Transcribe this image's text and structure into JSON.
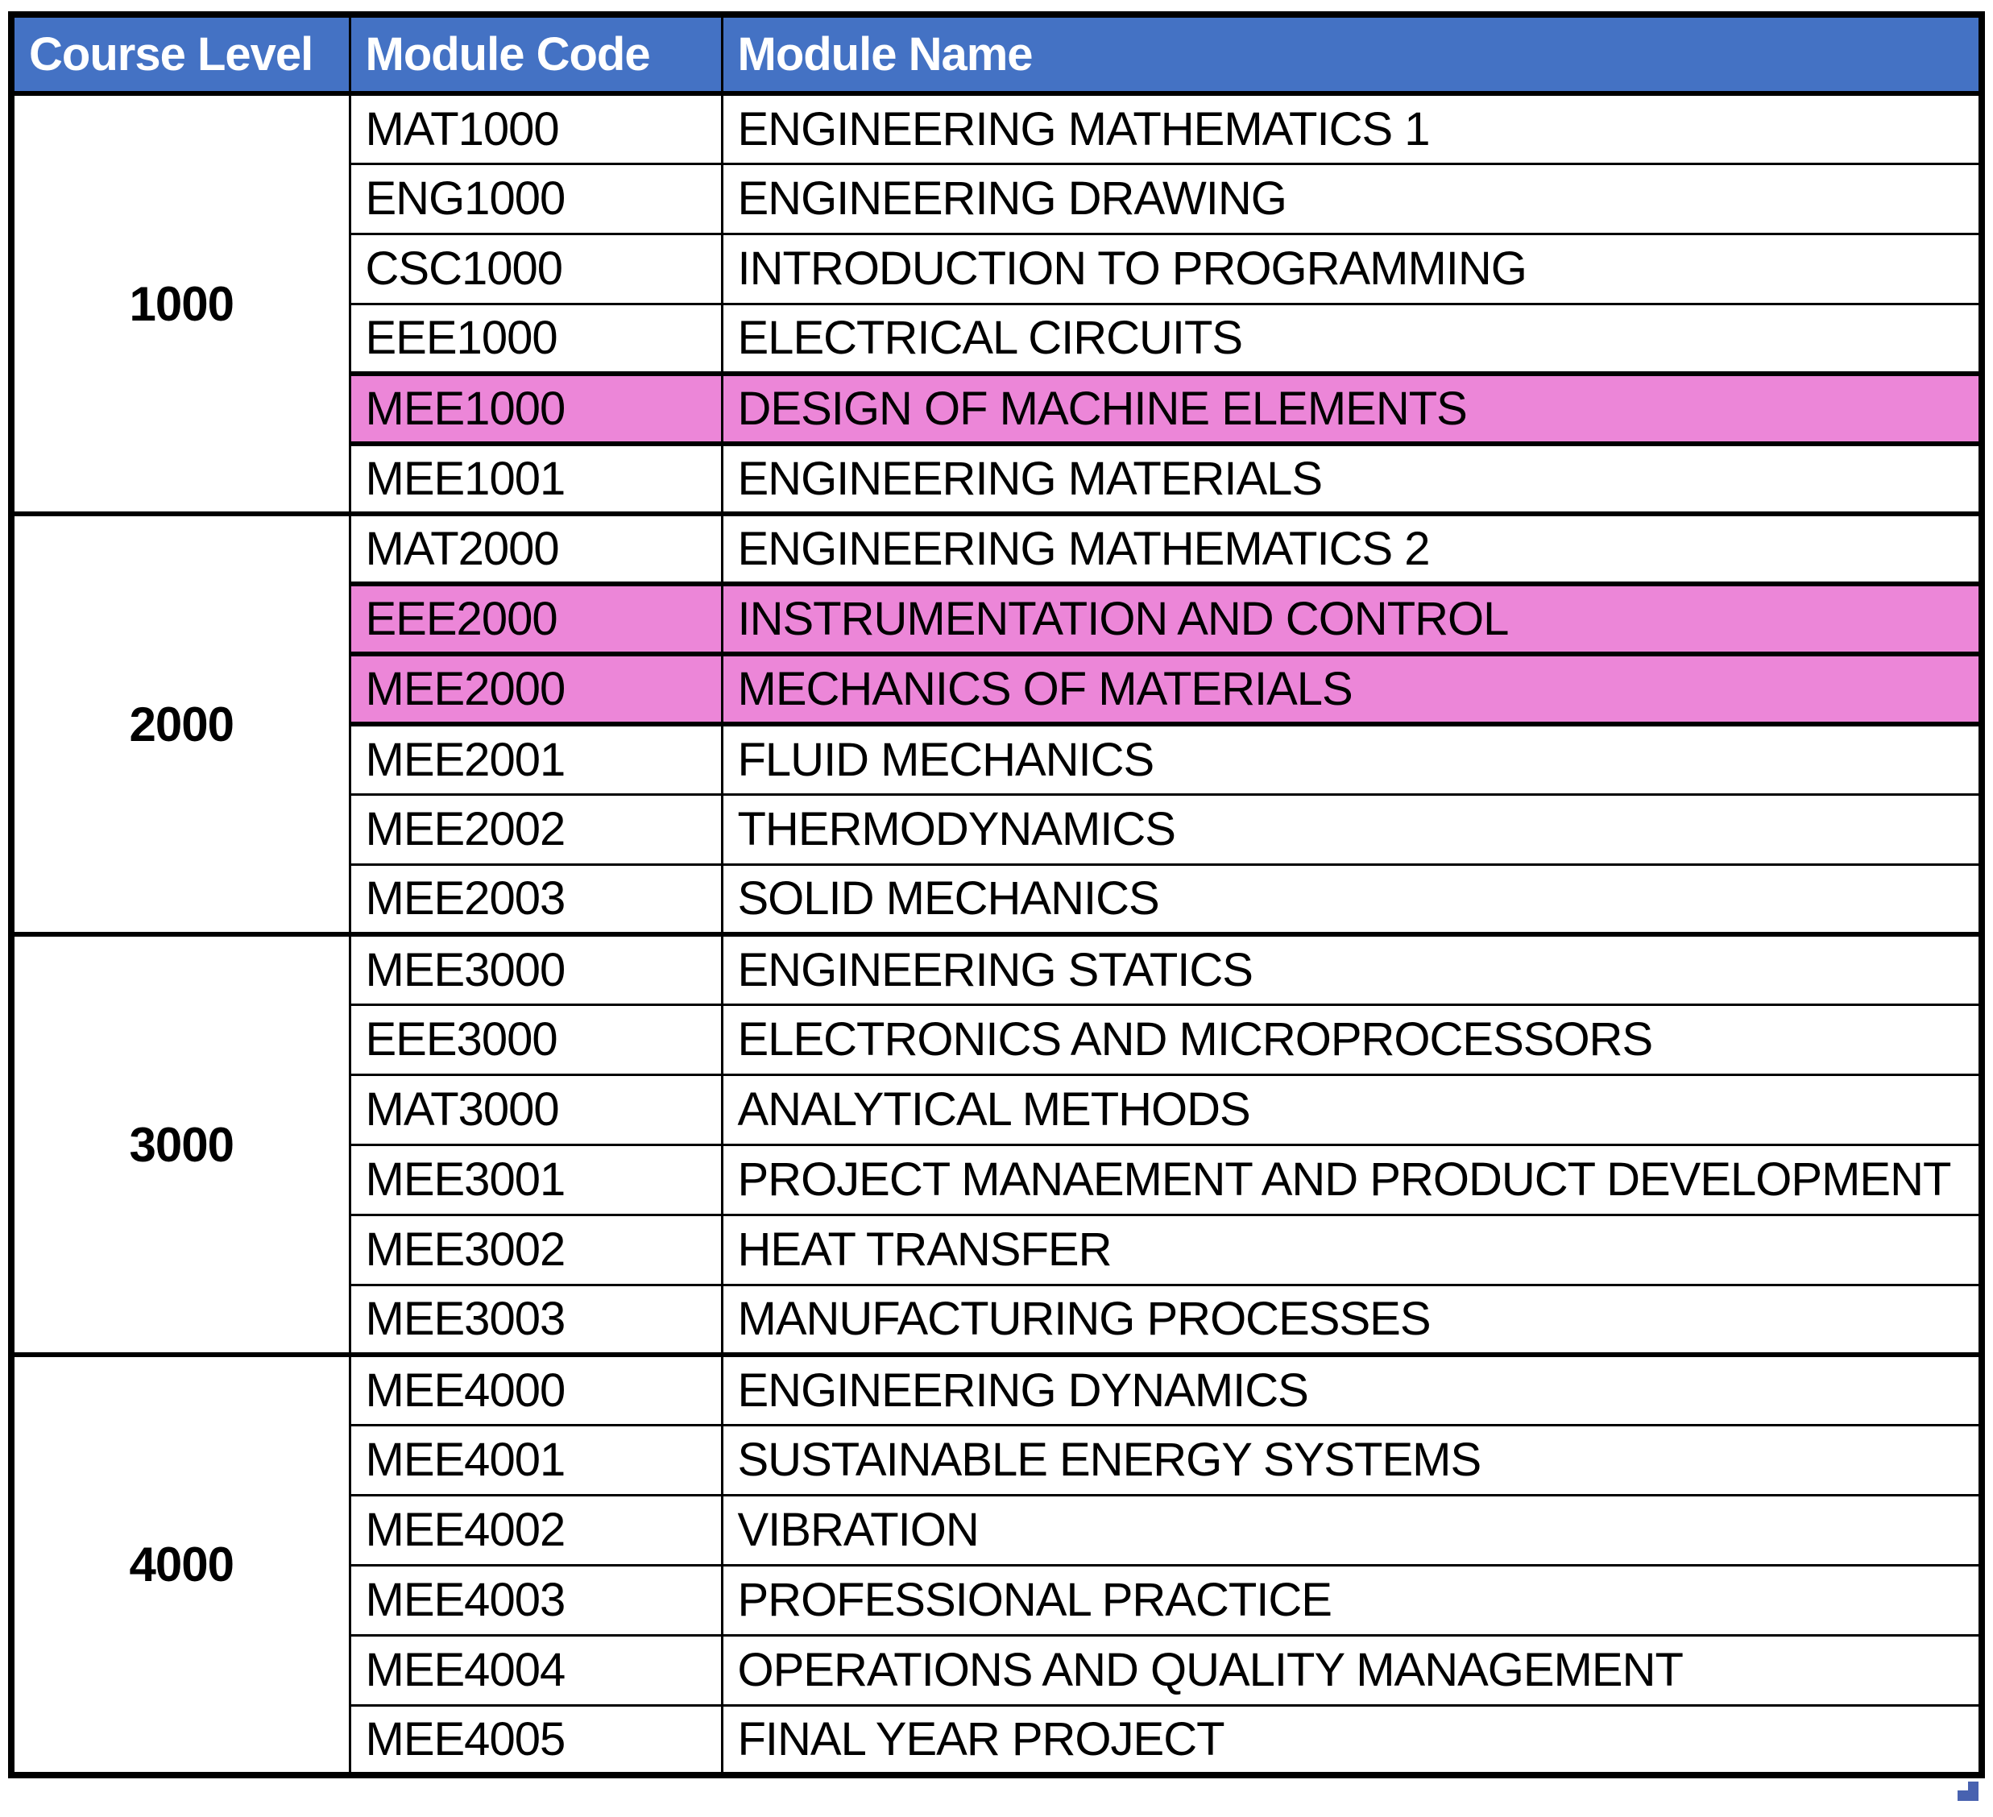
{
  "table": {
    "columns": [
      "Course Level",
      "Module Code",
      "Module Name"
    ],
    "groups": [
      {
        "level": "1000",
        "modules": [
          {
            "code": "MAT1000",
            "name": "ENGINEERING MATHEMATICS 1",
            "highlight": false
          },
          {
            "code": "ENG1000",
            "name": "ENGINEERING DRAWING",
            "highlight": false
          },
          {
            "code": "CSC1000",
            "name": "INTRODUCTION TO PROGRAMMING",
            "highlight": false
          },
          {
            "code": "EEE1000",
            "name": "ELECTRICAL CIRCUITS",
            "highlight": false
          },
          {
            "code": "MEE1000",
            "name": "DESIGN OF MACHINE ELEMENTS",
            "highlight": true
          },
          {
            "code": "MEE1001",
            "name": "ENGINEERING MATERIALS",
            "highlight": false
          }
        ]
      },
      {
        "level": "2000",
        "modules": [
          {
            "code": "MAT2000",
            "name": "ENGINEERING MATHEMATICS 2",
            "highlight": false
          },
          {
            "code": "EEE2000",
            "name": "INSTRUMENTATION AND CONTROL",
            "highlight": true
          },
          {
            "code": "MEE2000",
            "name": "MECHANICS OF MATERIALS",
            "highlight": true
          },
          {
            "code": "MEE2001",
            "name": "FLUID MECHANICS",
            "highlight": false
          },
          {
            "code": "MEE2002",
            "name": "THERMODYNAMICS",
            "highlight": false
          },
          {
            "code": "MEE2003",
            "name": "SOLID MECHANICS",
            "highlight": false
          }
        ]
      },
      {
        "level": "3000",
        "modules": [
          {
            "code": "MEE3000",
            "name": "ENGINEERING STATICS",
            "highlight": false
          },
          {
            "code": "EEE3000",
            "name": "ELECTRONICS AND MICROPROCESSORS",
            "highlight": false
          },
          {
            "code": "MAT3000",
            "name": "ANALYTICAL METHODS",
            "highlight": false
          },
          {
            "code": "MEE3001",
            "name": "PROJECT MANAEMENT AND PRODUCT DEVELOPMENT",
            "highlight": false
          },
          {
            "code": "MEE3002",
            "name": "HEAT TRANSFER",
            "highlight": false
          },
          {
            "code": "MEE3003",
            "name": "MANUFACTURING PROCESSES",
            "highlight": false
          }
        ]
      },
      {
        "level": "4000",
        "modules": [
          {
            "code": "MEE4000",
            "name": "ENGINEERING DYNAMICS",
            "highlight": false
          },
          {
            "code": "MEE4001",
            "name": "SUSTAINABLE ENERGY SYSTEMS",
            "highlight": false
          },
          {
            "code": "MEE4002",
            "name": "VIBRATION",
            "highlight": false
          },
          {
            "code": "MEE4003",
            "name": "PROFESSIONAL PRACTICE",
            "highlight": false
          },
          {
            "code": "MEE4004",
            "name": "OPERATIONS AND QUALITY MANAGEMENT",
            "highlight": false
          },
          {
            "code": "MEE4005",
            "name": "FINAL YEAR PROJECT",
            "highlight": false
          }
        ]
      }
    ],
    "colors": {
      "header_bg": "#4472C4",
      "header_text": "#FFFFFF",
      "highlight_bg": "#EC86D8",
      "border": "#000000",
      "body_text": "#000000",
      "corner_marker": "#4862B0"
    },
    "icons": {
      "corner_marker": "fill-handle-icon"
    }
  }
}
